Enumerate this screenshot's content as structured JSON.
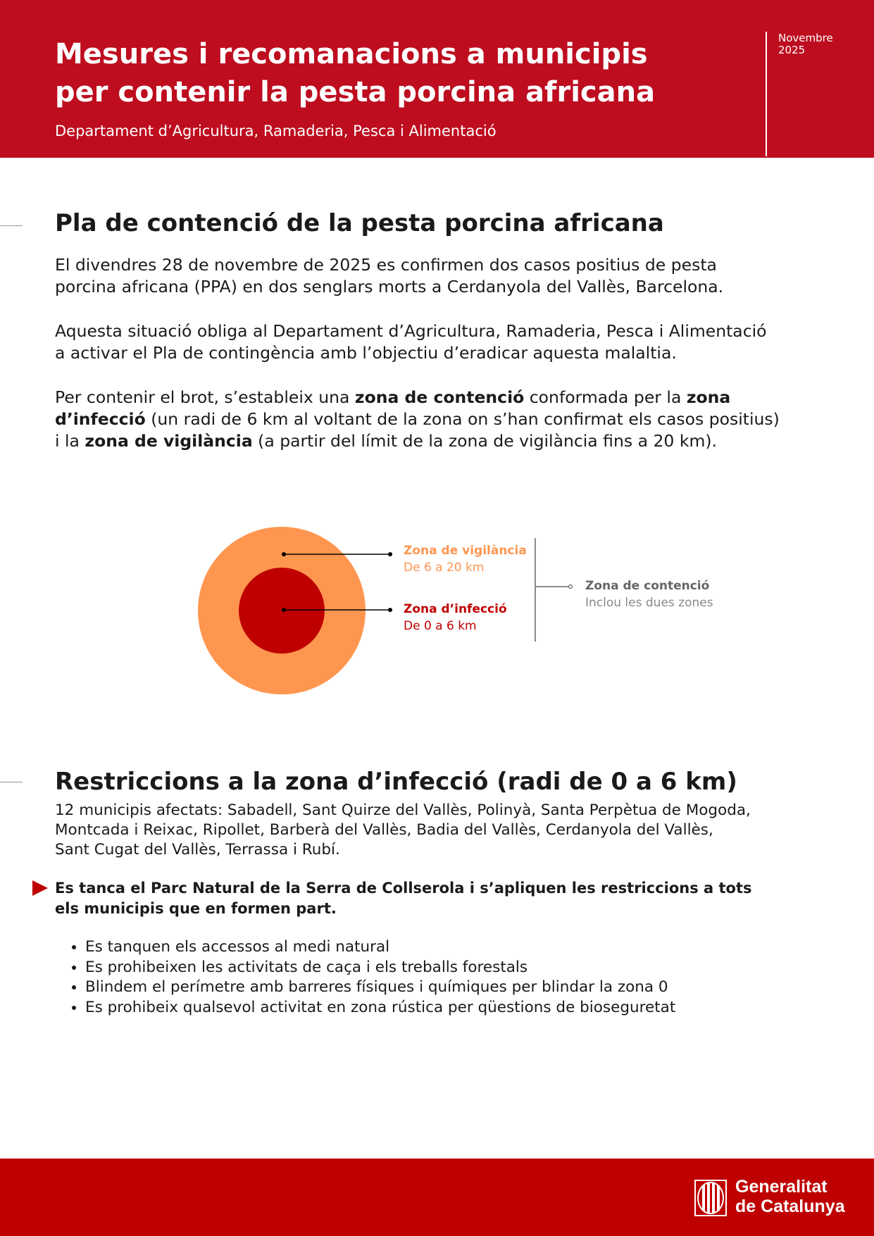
{
  "header": {
    "title_lines": [
      "Mesures i recomanacions a municipis",
      "per contenir la pesta porcina africana"
    ],
    "subtitle": "Departament d’Agricultura, Ramaderia, Pesca i Alimentació",
    "date_month": "Novembre",
    "date_year": "2025"
  },
  "section1": {
    "heading": "Pla de contenció de la pesta porcina africana",
    "paragraph1": [
      "El divendres 28 de novembre de 2025 es confirmen dos casos positius de pesta",
      "porcina africana (PPA) en dos senglars morts a Cerdanyola del Vallès, Barcelona."
    ],
    "paragraph2": [
      "Aquesta situació obliga al Departament d’Agricultura, Ramaderia, Pesca i Alimentació",
      "a activar el Pla de contingència amb l’objectiu d’eradicar aquesta malaltia."
    ],
    "paragraph3": {
      "line1": [
        "Per contenir el brot, s’estableix una ",
        "zona de contenció",
        " conformada per la ",
        "zona"
      ],
      "line2": [
        "d’infecció",
        " (un radi de 6 km al voltant de la zona on s’han confirmat els casos positius)"
      ],
      "line3": [
        "i la ",
        "zona de vigilància",
        " (a partir del límit de la zona de vigilància fins a 20 km)."
      ]
    }
  },
  "diagram": {
    "colors": {
      "vigilancia": "#FF9650",
      "infeccio": "#BF0000",
      "contencio": "#666666"
    },
    "vigilancia": {
      "title": "Zona de vigilància",
      "range": "De 6 a 20 km"
    },
    "infeccio": {
      "title": "Zona d’infecció",
      "range": "De 0 a 6 km"
    },
    "contencio": {
      "title": "Zona de contenció",
      "note": "Inclou les dues zones"
    }
  },
  "section2": {
    "heading": "Restriccions a la zona d’infecció (radi de 0 a 6 km)",
    "municipis": [
      "12 municipis afectats: Sabadell, Sant Quirze del Vallès, Polinyà, Santa Perpètua de Mogoda,",
      "Montcada i Reixac, Ripollet, Barberà del Vallès, Badia del Vallès, Cerdanyola del Vallès,",
      "Sant Cugat del Vallès, Terrassa i Rubí."
    ],
    "highlight": [
      "Es tanca el Parc Natural de la Serra de Collserola i s’apliquen les restriccions a tots",
      "els municipis que en formen part."
    ],
    "bullets": [
      "Es tanquen els accessos al medi natural",
      "Es prohibeixen les activitats de caça i els treballs forestals",
      "Blindem el perímetre amb barreres físiques i químiques per blindar la zona 0",
      "Es prohibeix qualsevol activitat en zona rústica per qüestions de bioseguretat"
    ]
  },
  "footer": {
    "logo_line1": "Generalitat",
    "logo_line2": "de Catalunya"
  }
}
